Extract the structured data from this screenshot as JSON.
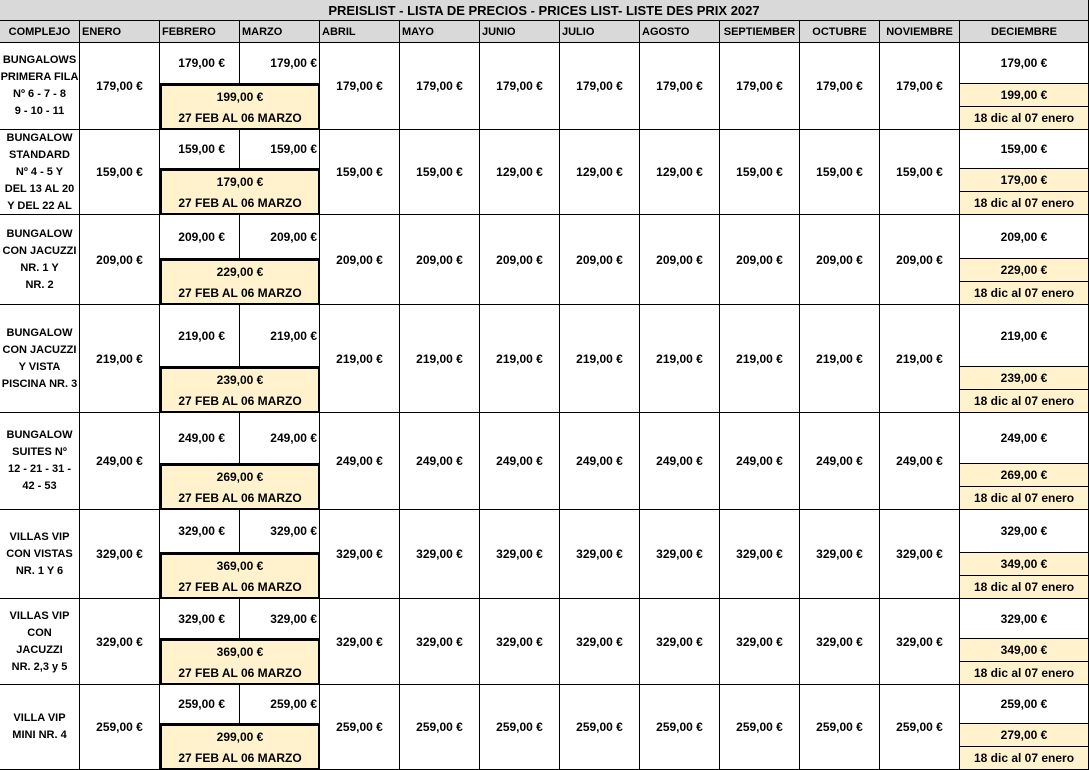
{
  "title": "PREISLIST - LISTA DE PRECIOS - PRICES LIST- LISTE DES PRIX   2027",
  "headers": [
    "COMPLEJO",
    "ENERO",
    "FEBRERO",
    "MARZO",
    "ABRIL",
    "MAYO",
    "JUNIO",
    "JULIO",
    "AGOSTO",
    "SEPTIEMBER",
    "OCTUBRE",
    "NOVIEMBRE",
    "DECIEMBRE"
  ],
  "rows": [
    {
      "name": [
        "BUNGALOWS",
        "PRIMERA FILA",
        "Nº   6 - 7 - 8",
        "9 - 10 - 11"
      ],
      "enero": "179,00 €",
      "febrero": "179,00 €",
      "marzo": "179,00 €",
      "peak": "199,00 €",
      "peak_range": "27 FEB AL 06 MARZO",
      "months": [
        "179,00 €",
        "179,00 €",
        "179,00 €",
        "179,00 €",
        "179,00 €",
        "179,00 €",
        "179,00 €",
        "179,00 €"
      ],
      "diciembre": "179,00 €",
      "dic_peak": "199,00 €",
      "dic_range": "18 dic al 07 enero"
    },
    {
      "name": [
        "BUNGALOW",
        "STANDARD",
        "Nº  4 - 5 Y",
        "DEL 13 AL  20",
        "Y DEL  22 AL"
      ],
      "enero": "159,00 €",
      "febrero": "159,00 €",
      "marzo": "159,00 €",
      "peak": "179,00 €",
      "peak_range": "27 FEB AL 06 MARZO",
      "months": [
        "159,00 €",
        "159,00 €",
        "129,00 €",
        "129,00 €",
        "129,00 €",
        "159,00 €",
        "159,00 €",
        "159,00 €"
      ],
      "diciembre": "159,00 €",
      "dic_peak": "179,00 €",
      "dic_range": "18 dic al 07 enero"
    },
    {
      "name": [
        "BUNGALOW",
        "CON JACUZZI",
        "NR.        1 Y",
        "NR. 2"
      ],
      "enero": "209,00 €",
      "febrero": "209,00 €",
      "marzo": "209,00 €",
      "peak": "229,00 €",
      "peak_range": "27 FEB AL 06 MARZO",
      "months": [
        "209,00 €",
        "209,00 €",
        "209,00 €",
        "209,00 €",
        "209,00 €",
        "209,00 €",
        "209,00 €",
        "209,00 €"
      ],
      "diciembre": "209,00 €",
      "dic_peak": "229,00 €",
      "dic_range": "18 dic al 07 enero"
    },
    {
      "name": [
        "BUNGALOW",
        "CON JACUZZI",
        "Y VISTA",
        "PISCINA NR. 3"
      ],
      "enero": "219,00 €",
      "febrero": "219,00 €",
      "marzo": "219,00 €",
      "peak": "239,00 €",
      "peak_range": "27 FEB AL 06 MARZO",
      "months": [
        "219,00 €",
        "219,00 €",
        "219,00 €",
        "219,00 €",
        "219,00 €",
        "219,00 €",
        "219,00 €",
        "219,00 €"
      ],
      "diciembre": "219,00 €",
      "dic_peak": "239,00 €",
      "dic_range": "18 dic al 07 enero"
    },
    {
      "name": [
        "BUNGALOW",
        "SUITES  Nº",
        "12 - 21 - 31 -",
        "42 - 53"
      ],
      "enero": "249,00 €",
      "febrero": "249,00 €",
      "marzo": "249,00 €",
      "peak": "269,00 €",
      "peak_range": "27 FEB AL 06 MARZO",
      "months": [
        "249,00 €",
        "249,00 €",
        "249,00 €",
        "249,00 €",
        "249,00 €",
        "249,00 €",
        "249,00 €",
        "249,00 €"
      ],
      "diciembre": "249,00 €",
      "dic_peak": "269,00 €",
      "dic_range": "18 dic al 07 enero"
    },
    {
      "name": [
        "VILLAS VIP",
        "CON VISTAS",
        "NR. 1 Y 6"
      ],
      "enero": "329,00 €",
      "febrero": "329,00 €",
      "marzo": "329,00 €",
      "peak": "369,00 €",
      "peak_range": "27 FEB AL 06 MARZO",
      "months": [
        "329,00 €",
        "329,00 €",
        "329,00 €",
        "329,00 €",
        "329,00 €",
        "329,00 €",
        "329,00 €",
        "329,00 €"
      ],
      "diciembre": "329,00 €",
      "dic_peak": "349,00 €",
      "dic_range": "18 dic al 07 enero"
    },
    {
      "name": [
        "VILLAS VIP",
        "CON",
        "JACUZZI",
        "NR. 2,3 y 5"
      ],
      "enero": "329,00 €",
      "febrero": "329,00 €",
      "marzo": "329,00 €",
      "peak": "369,00 €",
      "peak_range": "27 FEB AL 06 MARZO",
      "months": [
        "329,00 €",
        "329,00 €",
        "329,00 €",
        "329,00 €",
        "329,00 €",
        "329,00 €",
        "329,00 €",
        "329,00 €"
      ],
      "diciembre": "329,00 €",
      "dic_peak": "349,00 €",
      "dic_range": "18 dic al 07 enero"
    },
    {
      "name": [
        "VILLA VIP",
        "MINI NR. 4"
      ],
      "enero": "259,00 €",
      "febrero": "259,00 €",
      "marzo": "259,00 €",
      "peak": "299,00 €",
      "peak_range": "27 FEB AL 06 MARZO",
      "months": [
        "259,00 €",
        "259,00 €",
        "259,00 €",
        "259,00 €",
        "259,00 €",
        "259,00 €",
        "259,00 €",
        "259,00 €"
      ],
      "diciembre": "259,00 €",
      "dic_peak": "279,00 €",
      "dic_range": "18 dic al 07 enero"
    }
  ]
}
